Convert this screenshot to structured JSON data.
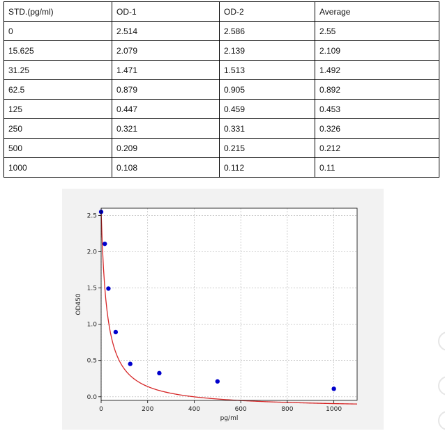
{
  "table": {
    "headers": [
      "STD.(pg/ml)",
      "OD-1",
      "OD-2",
      "Average"
    ],
    "rows": [
      [
        "0",
        "2.514",
        "2.586",
        "2.55"
      ],
      [
        "15.625",
        "2.079",
        "2.139",
        "2.109"
      ],
      [
        "31.25",
        "1.471",
        "1.513",
        "1.492"
      ],
      [
        "62.5",
        "0.879",
        "0.905",
        "0.892"
      ],
      [
        "125",
        "0.447",
        "0.459",
        "0.453"
      ],
      [
        "250",
        "0.321",
        "0.331",
        "0.326"
      ],
      [
        "500",
        "0.209",
        "0.215",
        "0.212"
      ],
      [
        "1000",
        "0.108",
        "0.112",
        "0.11"
      ]
    ]
  },
  "chart_data": {
    "type": "scatter",
    "title": "",
    "xlabel": "pg/ml",
    "ylabel": "OD450",
    "xlim": [
      0,
      1100
    ],
    "ylim": [
      -0.05,
      2.6
    ],
    "x_ticks": [
      "0",
      "200",
      "400",
      "600",
      "800",
      "1000"
    ],
    "y_ticks": [
      "0.0",
      "0.5",
      "1.0",
      "1.5",
      "2.0",
      "2.5"
    ],
    "grid": true,
    "points": {
      "x": [
        0,
        15.625,
        31.25,
        62.5,
        125,
        250,
        500,
        1000
      ],
      "y": [
        2.55,
        2.109,
        1.492,
        0.892,
        0.453,
        0.326,
        0.212,
        0.11
      ]
    },
    "point_color": "#0000cc",
    "fit_color": "#d62728",
    "fit_curve": {
      "x0": 0,
      "y0": 2.55,
      "x_half": 25,
      "floor": -0.16
    }
  }
}
